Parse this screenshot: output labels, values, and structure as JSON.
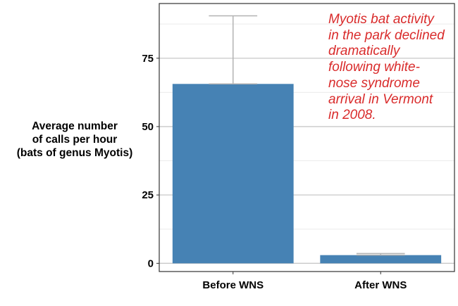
{
  "chart_data": {
    "type": "bar",
    "categories": [
      "Before WNS",
      "After WNS"
    ],
    "values": [
      65.6,
      3.0
    ],
    "error_upper": [
      90.5,
      3.6
    ],
    "ylabel_lines": [
      "Average number",
      "of calls per hour",
      "(bats of genus Myotis)"
    ],
    "xlabel": "",
    "ylim": [
      -3,
      95
    ],
    "yticks": [
      0,
      25,
      50,
      75
    ],
    "ytick_labels": [
      "0",
      "25",
      "50",
      "75"
    ],
    "grid": true,
    "annotation_lines": [
      "Myotis bat activity",
      "in the park declined",
      "dramatically",
      "following white-",
      "nose syndrome",
      "arrival in Vermont",
      "in 2008."
    ],
    "colors": {
      "bar": "#4682b4",
      "errorbar": "#b3b3b3",
      "grid_major": "#c8c8c8",
      "grid_minor": "#ececec",
      "annotation": "#d92b2b",
      "panel_border": "#333333"
    }
  }
}
